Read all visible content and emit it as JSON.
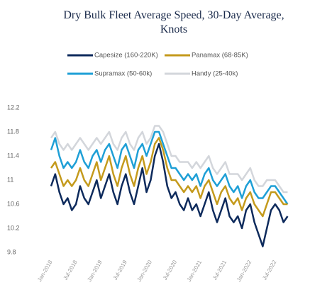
{
  "chart_data": {
    "type": "line",
    "title": "Dry Bulk Fleet Average Speed, 30-Day Average, Knots",
    "categories": [
      "Jan-2018",
      null,
      null,
      null,
      null,
      null,
      "Jul-2018",
      null,
      null,
      null,
      null,
      null,
      "Jan-2019",
      null,
      null,
      null,
      null,
      null,
      "Jul-2019",
      null,
      null,
      null,
      null,
      null,
      "Jan-2020",
      null,
      null,
      null,
      null,
      null,
      "Jul-2020",
      null,
      null,
      null,
      null,
      null,
      "Jan-2021",
      null,
      null,
      null,
      null,
      null,
      "Jul-2021",
      null,
      null,
      null,
      null,
      null,
      "Jan-2022",
      null,
      null,
      null,
      null,
      null,
      "Jul-2022",
      null,
      null,
      null
    ],
    "series": [
      {
        "name": "Capesize (160-220K)",
        "color": "#0d2a5c",
        "values": [
          10.9,
          11.1,
          10.8,
          10.6,
          10.7,
          10.5,
          10.6,
          10.9,
          10.7,
          10.6,
          10.8,
          11.0,
          10.7,
          10.9,
          11.1,
          10.8,
          10.6,
          10.9,
          11.1,
          10.8,
          10.6,
          10.9,
          11.2,
          10.8,
          11.0,
          11.4,
          11.6,
          11.3,
          10.9,
          10.7,
          10.8,
          10.6,
          10.5,
          10.7,
          10.5,
          10.6,
          10.4,
          10.6,
          10.8,
          10.5,
          10.3,
          10.5,
          10.7,
          10.4,
          10.3,
          10.4,
          10.2,
          10.5,
          10.6,
          10.3,
          10.1,
          9.9,
          10.2,
          10.5,
          10.6,
          10.5,
          10.3,
          10.4
        ]
      },
      {
        "name": "Panamax (68-85K)",
        "color": "#c49a1c",
        "values": [
          11.2,
          11.3,
          11.1,
          10.9,
          11.0,
          10.9,
          11.0,
          11.2,
          11.0,
          10.9,
          11.1,
          11.3,
          11.0,
          11.2,
          11.4,
          11.1,
          10.9,
          11.2,
          11.4,
          11.1,
          10.9,
          11.2,
          11.4,
          11.1,
          11.3,
          11.6,
          11.7,
          11.5,
          11.2,
          11.0,
          11.0,
          10.9,
          10.8,
          10.9,
          10.8,
          10.9,
          10.7,
          10.9,
          11.0,
          10.8,
          10.6,
          10.8,
          10.9,
          10.7,
          10.6,
          10.7,
          10.5,
          10.7,
          10.8,
          10.6,
          10.5,
          10.4,
          10.6,
          10.8,
          10.8,
          10.7,
          10.6,
          10.6
        ]
      },
      {
        "name": "Supramax (50-60k)",
        "color": "#1e9fd6",
        "values": [
          11.5,
          11.7,
          11.4,
          11.2,
          11.3,
          11.2,
          11.3,
          11.5,
          11.3,
          11.2,
          11.4,
          11.5,
          11.3,
          11.5,
          11.6,
          11.4,
          11.2,
          11.5,
          11.6,
          11.4,
          11.2,
          11.5,
          11.6,
          11.4,
          11.6,
          11.8,
          11.8,
          11.6,
          11.4,
          11.2,
          11.2,
          11.1,
          11.0,
          11.1,
          11.0,
          11.1,
          10.9,
          11.1,
          11.2,
          11.0,
          10.9,
          11.0,
          11.1,
          10.9,
          10.8,
          10.9,
          10.7,
          10.9,
          11.0,
          10.8,
          10.7,
          10.7,
          10.8,
          10.9,
          10.9,
          10.8,
          10.7,
          10.6
        ]
      },
      {
        "name": "Handy (25-40k)",
        "color": "#d3d6db",
        "values": [
          11.7,
          11.8,
          11.6,
          11.5,
          11.6,
          11.5,
          11.6,
          11.7,
          11.6,
          11.5,
          11.6,
          11.7,
          11.6,
          11.7,
          11.8,
          11.6,
          11.5,
          11.7,
          11.8,
          11.6,
          11.5,
          11.7,
          11.8,
          11.6,
          11.7,
          11.9,
          11.9,
          11.8,
          11.6,
          11.4,
          11.4,
          11.3,
          11.3,
          11.3,
          11.2,
          11.3,
          11.2,
          11.3,
          11.4,
          11.2,
          11.1,
          11.2,
          11.3,
          11.1,
          11.1,
          11.1,
          11.0,
          11.1,
          11.2,
          11.0,
          10.9,
          10.9,
          11.0,
          11.0,
          11.0,
          10.9,
          10.8,
          10.8
        ]
      }
    ],
    "ylim": [
      9.8,
      12.2
    ],
    "yticks": [
      9.8,
      10.2,
      10.6,
      11,
      11.4,
      11.8,
      12.2
    ],
    "grid": false
  }
}
